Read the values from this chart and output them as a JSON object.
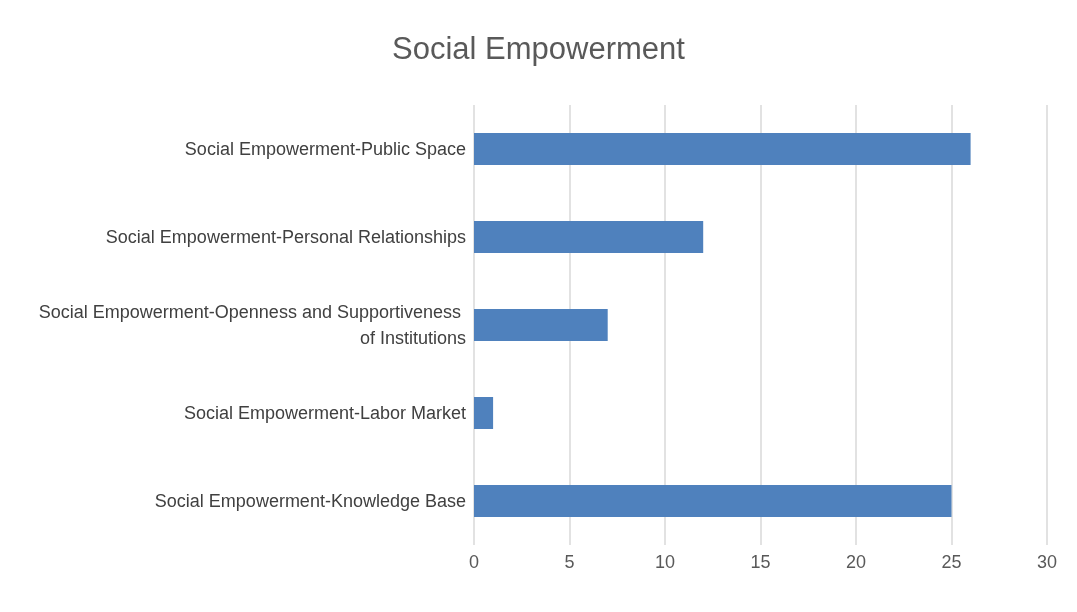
{
  "chart_data": {
    "type": "bar",
    "orientation": "horizontal",
    "title": "Social Empowerment",
    "categories": [
      "Social Empowerment-Public Space",
      "Social Empowerment-Personal Relationships",
      "Social Empowerment-Openness and Supportiveness of Institutions",
      "Social Empowerment-Labor Market",
      "Social Empowerment-Knowledge Base"
    ],
    "values": [
      26,
      12,
      7,
      1,
      25
    ],
    "color": "#4f81bd",
    "xlim": [
      0,
      30
    ],
    "xticks": [
      0,
      5,
      10,
      15,
      20,
      25,
      30
    ],
    "grid": "x"
  }
}
